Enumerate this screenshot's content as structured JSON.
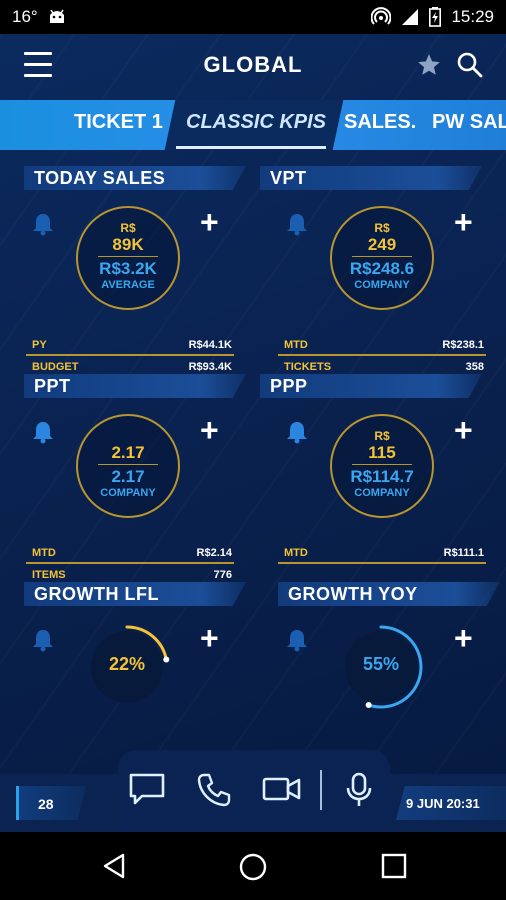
{
  "status_bar": {
    "temperature": "16°",
    "time": "15:29",
    "icons": [
      "weather-icon",
      "android-icon",
      "hotspot-icon",
      "signal-icon",
      "battery-icon"
    ]
  },
  "header": {
    "title": "GLOBAL",
    "icons": [
      "menu-icon",
      "star-icon",
      "search-icon"
    ]
  },
  "tabs": [
    {
      "label": "TICKET 1",
      "active": false
    },
    {
      "label": "CLASSIC KPIS",
      "active": true
    },
    {
      "label": "SALES.",
      "active": false
    },
    {
      "label": "PW SAL",
      "active": false
    }
  ],
  "tiles": {
    "today_sales": {
      "title": "TODAY SALES",
      "currency": "R$",
      "value": "89K",
      "secondary": "R$3.2K",
      "secondary_label": "AVERAGE",
      "rows": [
        {
          "key": "PY",
          "value": "R$44.1K"
        },
        {
          "key": "BUDGET",
          "value": "R$93.4K"
        }
      ]
    },
    "vpt": {
      "title": "VPT",
      "currency": "R$",
      "value": "249",
      "secondary": "R$248.6",
      "secondary_label": "COMPANY",
      "rows": [
        {
          "key": "MTD",
          "value": "R$238.1"
        },
        {
          "key": "TICKETS",
          "value": "358"
        }
      ]
    },
    "ppt": {
      "title": "PPT",
      "value": "2.17",
      "secondary": "2.17",
      "secondary_label": "COMPANY",
      "rows": [
        {
          "key": "MTD",
          "value": "R$2.14"
        },
        {
          "key": "ITEMS",
          "value": "776"
        }
      ]
    },
    "ppp": {
      "title": "PPP",
      "currency": "R$",
      "value": "115",
      "secondary": "R$114.7",
      "secondary_label": "COMPANY",
      "rows": [
        {
          "key": "MTD",
          "value": "R$111.1"
        }
      ]
    },
    "growth_lfl": {
      "title": "GROWTH LFL",
      "value_text": "22%",
      "fraction": 0.22,
      "color": "#f1c335"
    },
    "growth_yoy": {
      "title": "GROWTH YOY",
      "value_text": "55%",
      "fraction": 0.55,
      "color": "#3aa7f0"
    }
  },
  "bottom_bar": {
    "count": "28",
    "datetime": "9 JUN 20:31",
    "actions": [
      "chat-icon",
      "phone-icon",
      "video-icon",
      "microphone-icon"
    ]
  },
  "colors": {
    "accent_gold": "#f1c335",
    "accent_blue": "#3aa7f0",
    "tab_blue": "#1a8fe0",
    "background": "#0a2250"
  }
}
